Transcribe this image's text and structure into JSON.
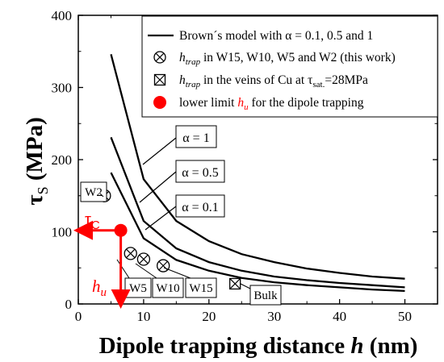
{
  "chart_data": {
    "type": "line",
    "xlabel_main": "Dipole trapping distance",
    "xlabel_var": "h",
    "xlabel_unit": "(nm)",
    "ylabel_main": "τ",
    "ylabel_sub": "S",
    "ylabel_unit": "(MPa)",
    "xlim": [
      0,
      55
    ],
    "ylim": [
      0,
      400
    ],
    "xticks": [
      0,
      10,
      20,
      30,
      40,
      50
    ],
    "yticks": [
      0,
      100,
      200,
      300,
      400
    ],
    "grid": false,
    "legend_position": "top-right",
    "x": [
      5,
      10,
      15,
      20,
      25,
      30,
      35,
      40,
      45,
      50
    ],
    "series": [
      {
        "name": "α = 1",
        "values": [
          346,
          173,
          115,
          87,
          69,
          58,
          49,
          43,
          38,
          35
        ]
      },
      {
        "name": "α = 0.5",
        "values": [
          231,
          115,
          77,
          58,
          46,
          38,
          33,
          29,
          26,
          23
        ]
      },
      {
        "name": "α = 0.1",
        "values": [
          182,
          91,
          61,
          46,
          36,
          30,
          26,
          23,
          20,
          18
        ]
      }
    ],
    "series_labels": [
      "α = 1",
      "α = 0.5",
      "α = 0.1"
    ],
    "points_this_work": [
      {
        "label": "W2",
        "x": 4,
        "y": 150
      },
      {
        "label": "W5",
        "x": 8,
        "y": 70
      },
      {
        "label": "W10",
        "x": 10,
        "y": 62
      },
      {
        "label": "W15",
        "x": 13,
        "y": 53
      }
    ],
    "points_cu": [
      {
        "label": "Bulk",
        "x": 24,
        "y": 28
      }
    ],
    "lower_limit_point": {
      "x": 6.5,
      "y": 102
    },
    "annotation_tau_c": {
      "main": "τ",
      "sub": "C"
    },
    "annotation_h_u": {
      "main": "h",
      "sub": "u"
    },
    "legend": {
      "item1": "Brown´s model with α = 0.1, 0.5 and 1",
      "item2_main": "h",
      "item2_sub": "trap",
      "item2_rest": " in W15, W10, W5 and W2 (this work)",
      "item3_main": "h",
      "item3_sub": "trap",
      "item3_rest_a": " in the veins of Cu at τ",
      "item3_rest_sub": "sat.",
      "item3_rest_b": "=28MPa",
      "item4_a": "lower limit ",
      "item4_main": "h",
      "item4_sub": "u",
      "item4_b": " for the dipole trapping"
    },
    "colors": {
      "axis": "#000000",
      "curve": "#000000",
      "accent": "#ff0000"
    }
  }
}
